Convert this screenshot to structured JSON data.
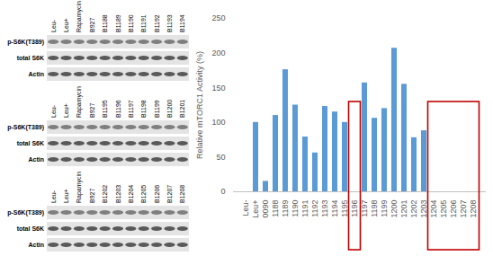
{
  "chart_data": {
    "type": "bar",
    "categories": [
      "Leu-",
      "Leu+",
      "0090",
      "1188",
      "1189",
      "1190",
      "1191",
      "1192",
      "1193",
      "1194",
      "1195",
      "1196",
      "1197",
      "1198",
      "1199",
      "1200",
      "1201",
      "1202",
      "1203",
      "1204",
      "1205",
      "1206",
      "1207",
      "1208"
    ],
    "values": [
      0,
      100,
      15,
      110,
      176,
      125,
      79,
      56,
      123,
      115,
      100,
      0,
      157,
      106,
      120,
      207,
      155,
      78,
      88,
      0,
      0,
      0,
      0,
      0
    ],
    "color": "#5b9bd5",
    "ylabel": "Relative mTORC1 Activity (%)",
    "ylim": [
      0,
      250
    ],
    "yticks": [
      0,
      50,
      100,
      150,
      200,
      250
    ],
    "grid": false,
    "highlight_ranges": [
      [
        "1196",
        "1196"
      ],
      [
        "1204",
        "1208"
      ]
    ],
    "highlight_color": "#c00000"
  },
  "blots": [
    {
      "lanes": [
        "Leu-",
        "Leu+",
        "Rapamycin",
        "B927",
        "B1188",
        "B1189",
        "B1190",
        "B1191",
        "B1192",
        "B1193",
        "B1194"
      ],
      "rows": [
        "p-S6K(T389)",
        "total S6K",
        "Actin"
      ]
    },
    {
      "lanes": [
        "Leu-",
        "Leu+",
        "Rapamycin",
        "B927",
        "B1195",
        "B1196",
        "B1197",
        "B1198",
        "B1199",
        "B1200",
        "B1201"
      ],
      "rows": [
        "p-S6K(T389)",
        "total S6K",
        "Actin"
      ]
    },
    {
      "lanes": [
        "Leu-",
        "Leu+",
        "Rapamycin",
        "B927",
        "B1202",
        "B1203",
        "B1204",
        "B1205",
        "B1206",
        "B1207",
        "B1208"
      ],
      "rows": [
        "p-S6K(T389)",
        "total S6K",
        "Actin"
      ]
    }
  ]
}
